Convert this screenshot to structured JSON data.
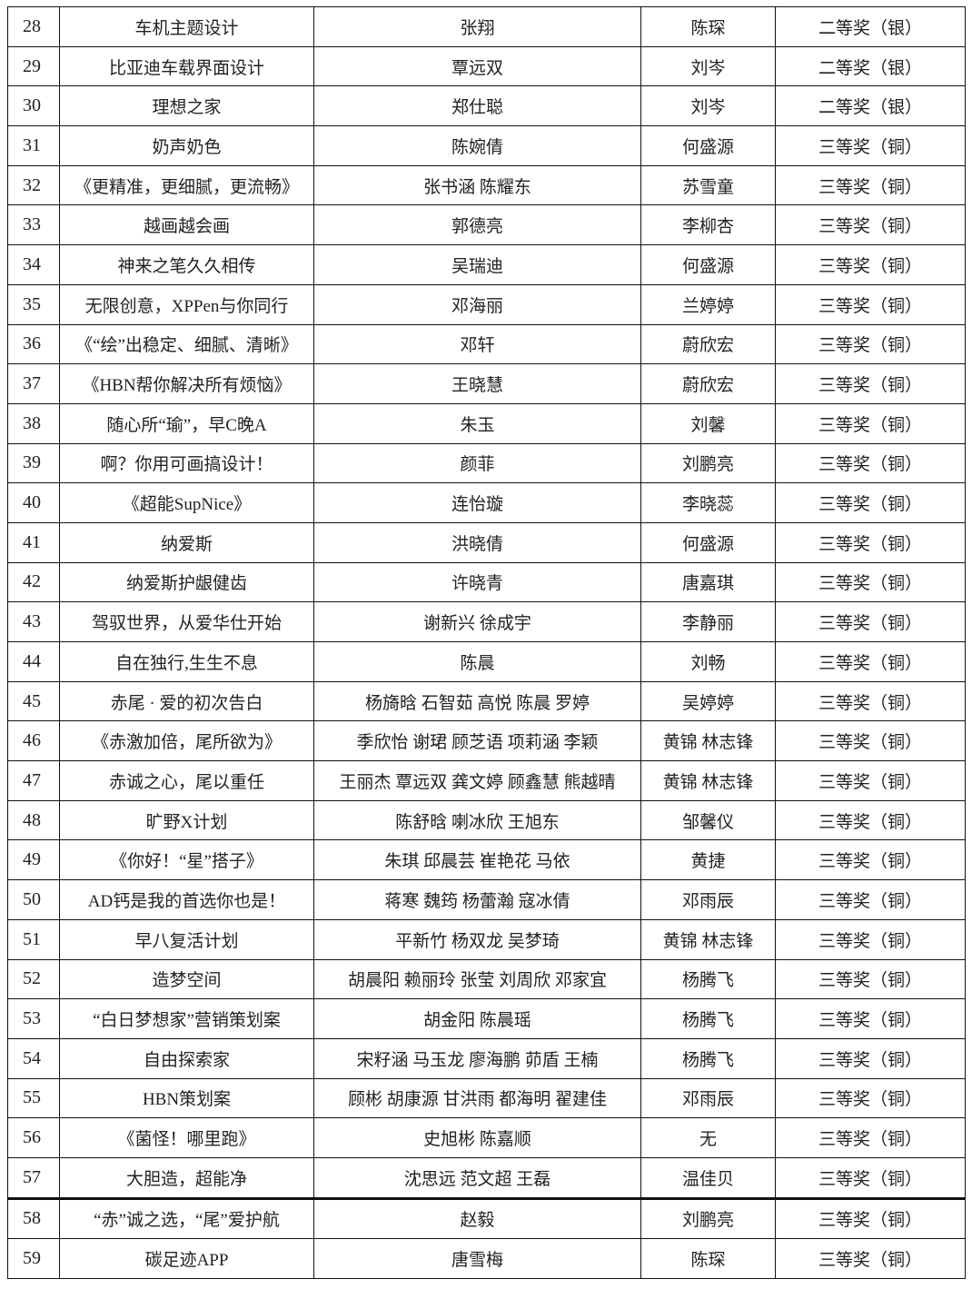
{
  "rows": [
    {
      "no": "28",
      "title": "车机主题设计",
      "authors": "张翔",
      "advisor": "陈琛",
      "award": "二等奖（银）"
    },
    {
      "no": "29",
      "title": "比亚迪车载界面设计",
      "authors": "覃远双",
      "advisor": "刘岑",
      "award": "二等奖（银）"
    },
    {
      "no": "30",
      "title": "理想之家",
      "authors": "郑仕聪",
      "advisor": "刘岑",
      "award": "二等奖（银）"
    },
    {
      "no": "31",
      "title": "奶声奶色",
      "authors": "陈婉倩",
      "advisor": "何盛源",
      "award": "三等奖（铜）"
    },
    {
      "no": "32",
      "title": "《更精准，更细腻，更流畅》",
      "authors": "张书涵  陈耀东",
      "advisor": "苏雪童",
      "award": "三等奖（铜）"
    },
    {
      "no": "33",
      "title": "越画越会画",
      "authors": "郭德亮",
      "advisor": "李柳杏",
      "award": "三等奖（铜）"
    },
    {
      "no": "34",
      "title": "神来之笔久久相传",
      "authors": "吴瑞迪",
      "advisor": "何盛源",
      "award": "三等奖（铜）"
    },
    {
      "no": "35",
      "title": "无限创意，XPPen与你同行",
      "authors": "邓海丽",
      "advisor": "兰婷婷",
      "award": "三等奖（铜）"
    },
    {
      "no": "36",
      "title": "《“绘”出稳定、细腻、清晰》",
      "authors": "邓轩",
      "advisor": "蔚欣宏",
      "award": "三等奖（铜）"
    },
    {
      "no": "37",
      "title": "《HBN帮你解决所有烦恼》",
      "authors": "王晓慧",
      "advisor": "蔚欣宏",
      "award": "三等奖（铜）"
    },
    {
      "no": "38",
      "title": "随心所“瑜”，早C晚A",
      "authors": "朱玉",
      "advisor": "刘馨",
      "award": "三等奖（铜）"
    },
    {
      "no": "39",
      "title": "啊？你用可画搞设计！",
      "authors": "颜菲",
      "advisor": "刘鹏亮",
      "award": "三等奖（铜）"
    },
    {
      "no": "40",
      "title": "《超能SupNice》",
      "authors": "连怡璇",
      "advisor": "李晓蕊",
      "award": "三等奖（铜）"
    },
    {
      "no": "41",
      "title": "纳爱斯",
      "authors": "洪晓倩",
      "advisor": "何盛源",
      "award": "三等奖（铜）"
    },
    {
      "no": "42",
      "title": "纳爱斯护龈健齿",
      "authors": "许晓青",
      "advisor": "唐嘉琪",
      "award": "三等奖（铜）"
    },
    {
      "no": "43",
      "title": "驾驭世界，从爱华仕开始",
      "authors": "谢新兴  徐成宇",
      "advisor": "李静丽",
      "award": "三等奖（铜）"
    },
    {
      "no": "44",
      "title": "自在独行,生生不息",
      "authors": "陈晨",
      "advisor": "刘畅",
      "award": "三等奖（铜）"
    },
    {
      "no": "45",
      "title": "赤尾 · 爱的初次告白",
      "authors": "杨旖晗  石智茹  高悦  陈晨  罗婷",
      "advisor": "吴婷婷",
      "award": "三等奖（铜）"
    },
    {
      "no": "46",
      "title": "《赤激加倍，尾所欲为》",
      "authors": "季欣怡  谢珺  顾芝语  项莉涵  李颖",
      "advisor": "黄锦 林志锋",
      "award": "三等奖（铜）"
    },
    {
      "no": "47",
      "title": "赤诚之心，尾以重任",
      "authors": "王丽杰  覃远双  龚文婷  顾鑫慧  熊越晴",
      "advisor": "黄锦 林志锋",
      "award": "三等奖（铜）"
    },
    {
      "no": "48",
      "title": "旷野X计划",
      "authors": "陈舒晗  喇冰欣  王旭东",
      "advisor": "邹馨仪",
      "award": "三等奖（铜）"
    },
    {
      "no": "49",
      "title": "《你好！“星”搭子》",
      "authors": "朱琪  邱晨芸  崔艳花  马依",
      "advisor": "黄捷",
      "award": "三等奖（铜）"
    },
    {
      "no": "50",
      "title": "AD钙是我的首选你也是！",
      "authors": "蒋寒  魏筠  杨蕾瀚  寇冰倩",
      "advisor": "邓雨辰",
      "award": "三等奖（铜）"
    },
    {
      "no": "51",
      "title": "早八复活计划",
      "authors": "平新竹  杨双龙  吴梦琦",
      "advisor": "黄锦 林志锋",
      "award": "三等奖（铜）"
    },
    {
      "no": "52",
      "title": "造梦空间",
      "authors": "胡晨阳  赖丽玲  张莹  刘周欣  邓家宜",
      "advisor": "杨腾飞",
      "award": "三等奖（铜）"
    },
    {
      "no": "53",
      "title": "“白日梦想家”营销策划案",
      "authors": "胡金阳  陈晨瑶",
      "advisor": "杨腾飞",
      "award": "三等奖（铜）"
    },
    {
      "no": "54",
      "title": "自由探索家",
      "authors": "宋籽涵  马玉龙  廖海鹏  茆盾  王楠",
      "advisor": "杨腾飞",
      "award": "三等奖（铜）"
    },
    {
      "no": "55",
      "title": "HBN策划案",
      "authors": "顾彬  胡康源  甘洪雨  都海明  翟建佳",
      "advisor": "邓雨辰",
      "award": "三等奖（铜）"
    },
    {
      "no": "56",
      "title": "《菌怪！哪里跑》",
      "authors": "史旭彬  陈嘉顺",
      "advisor": "无",
      "award": "三等奖（铜）"
    },
    {
      "no": "57",
      "title": "大胆造，超能净",
      "authors": "沈思远  范文超  王磊",
      "advisor": "温佳贝",
      "award": "三等奖（铜）"
    },
    {
      "no": "58",
      "title": "“赤”诚之选，“尾”爱护航",
      "authors": "赵毅",
      "advisor": "刘鹏亮",
      "award": "三等奖（铜）"
    },
    {
      "no": "59",
      "title": "碳足迹APP",
      "authors": "唐雪梅",
      "advisor": "陈琛",
      "award": "三等奖（铜）"
    }
  ]
}
